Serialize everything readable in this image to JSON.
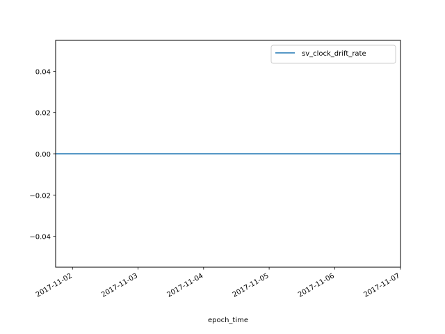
{
  "chart_data": {
    "type": "line",
    "xlabel": "epoch_time",
    "ylabel": "",
    "x_tick_labels": [
      "2017-11-02",
      "2017-11-03",
      "2017-11-04",
      "2017-11-05",
      "2017-11-06",
      "2017-11-07"
    ],
    "y_tick_labels": [
      "0.04",
      "0.02",
      "0.00",
      "−0.02",
      "−0.04"
    ],
    "y_ticks": [
      0.04,
      0.02,
      0.0,
      -0.02,
      -0.04
    ],
    "xlim": [
      "2017-11-01T17:50",
      "2017-11-07T00:05"
    ],
    "ylim": [
      -0.055,
      0.055
    ],
    "grid": false,
    "legend_position": "upper right",
    "series": [
      {
        "name": "sv_clock_drift_rate",
        "color": "#1f77b4",
        "x": [
          "2017-11-01T17:50",
          "2017-11-07T00:05"
        ],
        "y": [
          0.0,
          0.0
        ]
      }
    ]
  }
}
